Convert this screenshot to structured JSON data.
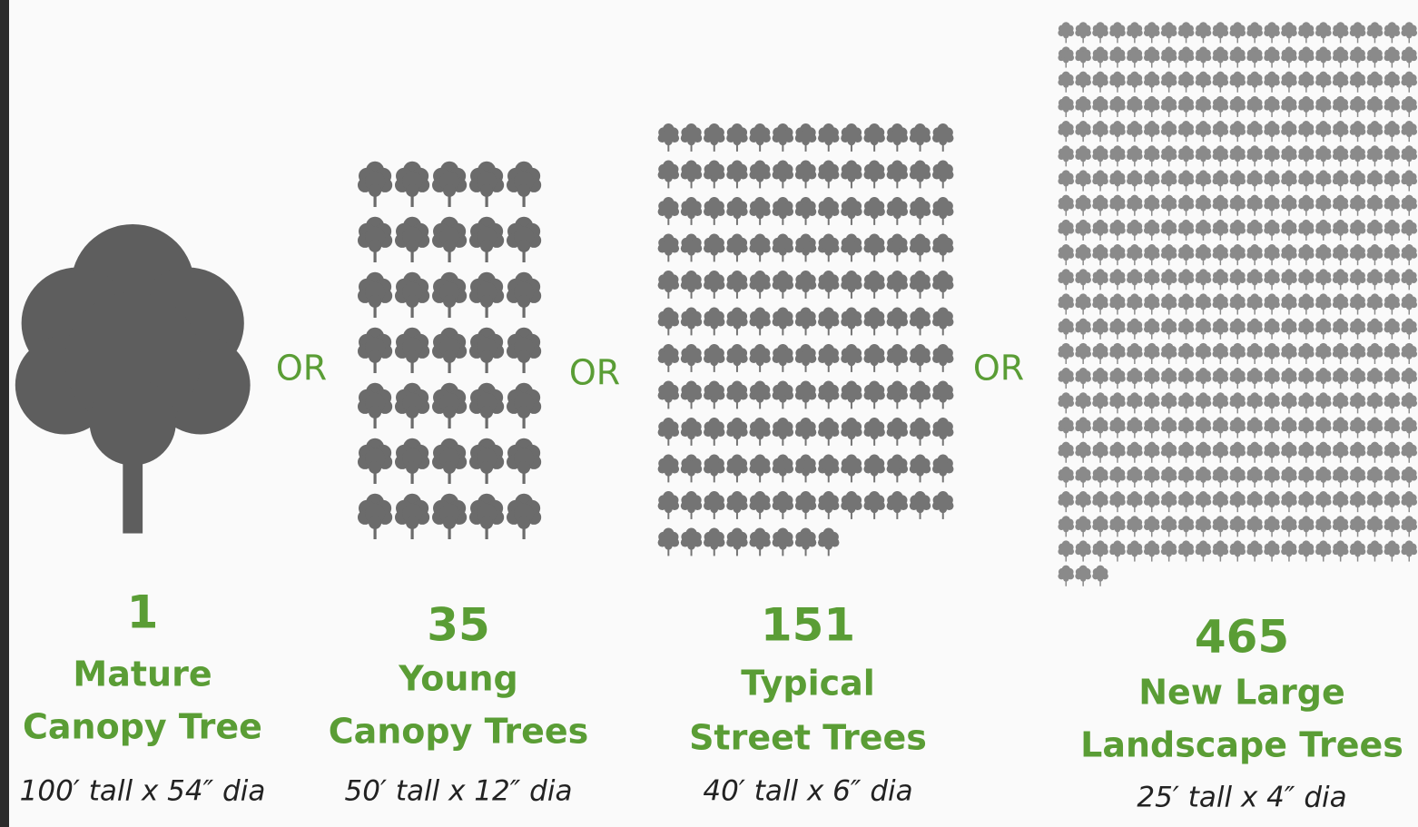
{
  "separator": "OR",
  "panels": [
    {
      "count": 1,
      "lines": [
        "Mature",
        "Canopy Tree"
      ],
      "size": "100′ tall x 54″ dia"
    },
    {
      "count": 35,
      "lines": [
        "Young",
        "Canopy Trees"
      ],
      "size": "50′ tall x 12″ dia"
    },
    {
      "count": 151,
      "lines": [
        "Typical",
        "Street Trees"
      ],
      "size": "40′ tall x 6″ dia"
    },
    {
      "count": 465,
      "lines": [
        "New Large",
        "Landscape Trees"
      ],
      "size": "25′ tall x 4″ dia"
    }
  ]
}
